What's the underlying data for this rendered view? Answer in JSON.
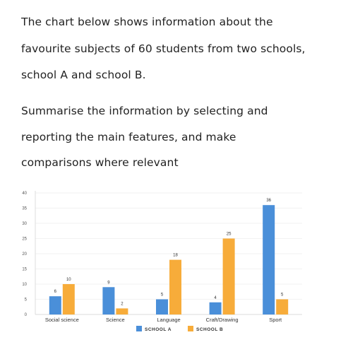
{
  "prompt": {
    "lines": [
      "The chart below shows information about the",
      "favourite subjects of 60 students from two schools,",
      "school A and school B.",
      "Summarise the information by selecting and",
      "reporting the main features, and make",
      "comparisons where relevant"
    ]
  },
  "chart_data": {
    "type": "bar",
    "categories": [
      "Social science",
      "Science",
      "Language",
      "Craft/Drawing",
      "Sport"
    ],
    "series": [
      {
        "name": "SCHOOL A",
        "values": [
          6,
          9,
          5,
          4,
          36
        ],
        "color": "#4a8fd9"
      },
      {
        "name": "SCHOOL B",
        "values": [
          10,
          2,
          18,
          25,
          5
        ],
        "color": "#f7ac3a"
      }
    ],
    "title": "",
    "xlabel": "",
    "ylabel": "",
    "ylim": [
      0,
      40
    ],
    "yticks": [
      0,
      5,
      10,
      15,
      20,
      25,
      30,
      35,
      40
    ],
    "grid": true,
    "legend": "bottom-center"
  }
}
